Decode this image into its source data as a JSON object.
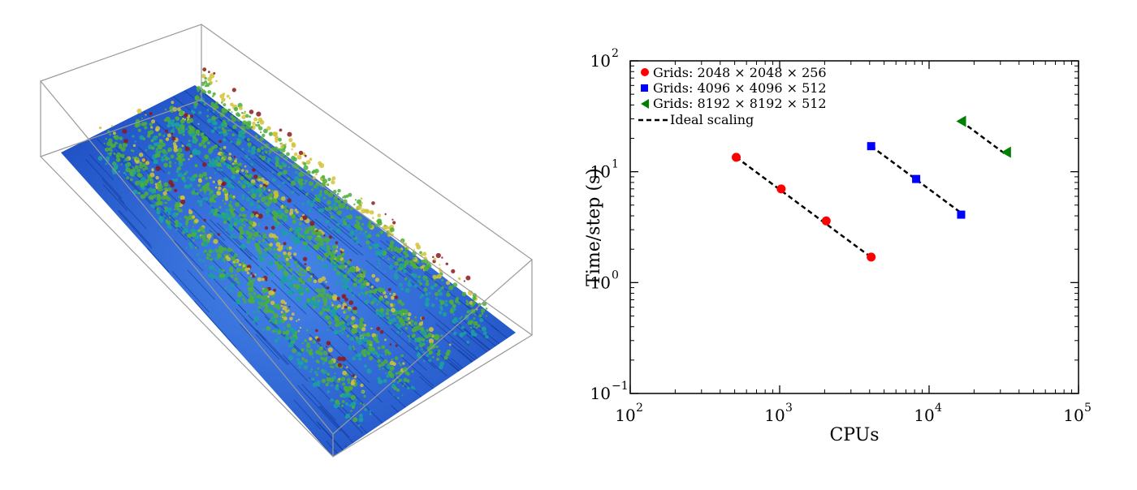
{
  "colors": {
    "series_red": "#ff0000",
    "series_blue": "#0000ff",
    "series_green": "#008000",
    "ideal": "#000000",
    "flow_base": "#1f5fd6",
    "flow_low": "#1aa2a0",
    "flow_mid": "#4caf3a",
    "flow_high": "#d4c23a",
    "flow_peak": "#8b1a1a"
  },
  "visualization": {
    "icon": "turbulent-flow-3d-render"
  },
  "chart_data": {
    "type": "scatter",
    "xlabel": "CPUs",
    "ylabel": "Time/step (s)",
    "xscale": "log",
    "yscale": "log",
    "xlim": [
      100,
      100000
    ],
    "ylim": [
      0.1,
      100
    ],
    "x_ticks": [
      {
        "value": 100,
        "label": "10",
        "exp": "2"
      },
      {
        "value": 1000,
        "label": "10",
        "exp": "3"
      },
      {
        "value": 10000,
        "label": "10",
        "exp": "4"
      },
      {
        "value": 100000,
        "label": "10",
        "exp": "5"
      }
    ],
    "y_ticks": [
      {
        "value": 0.1,
        "label": "10",
        "exp": "−1"
      },
      {
        "value": 1,
        "label": "10",
        "exp": "0"
      },
      {
        "value": 10,
        "label": "10",
        "exp": "1"
      },
      {
        "value": 100,
        "label": "10",
        "exp": "2"
      }
    ],
    "grid": false,
    "legend_position": "top-left",
    "series": [
      {
        "name": "Grids: 2048 × 2048 × 256",
        "marker": "circle",
        "color": "#ff0000",
        "x": [
          512,
          1024,
          2048,
          4096
        ],
        "y": [
          13.5,
          7.0,
          3.6,
          1.7
        ]
      },
      {
        "name": "Grids: 4096 × 4096 × 512",
        "marker": "square",
        "color": "#0000ff",
        "x": [
          4096,
          8192,
          16384
        ],
        "y": [
          17.0,
          8.6,
          4.1
        ]
      },
      {
        "name": "Grids: 8192 × 8192 × 512",
        "marker": "triangle-left",
        "color": "#008000",
        "x": [
          16384,
          32768
        ],
        "y": [
          28.5,
          15.0
        ]
      }
    ],
    "ideal_scaling": {
      "name": "Ideal scaling",
      "lines": [
        {
          "x": [
            512,
            4096
          ],
          "y": [
            13.5,
            1.69
          ]
        },
        {
          "x": [
            4096,
            16384
          ],
          "y": [
            17.0,
            4.25
          ]
        },
        {
          "x": [
            16384,
            32768
          ],
          "y": [
            28.5,
            14.25
          ]
        }
      ]
    }
  }
}
